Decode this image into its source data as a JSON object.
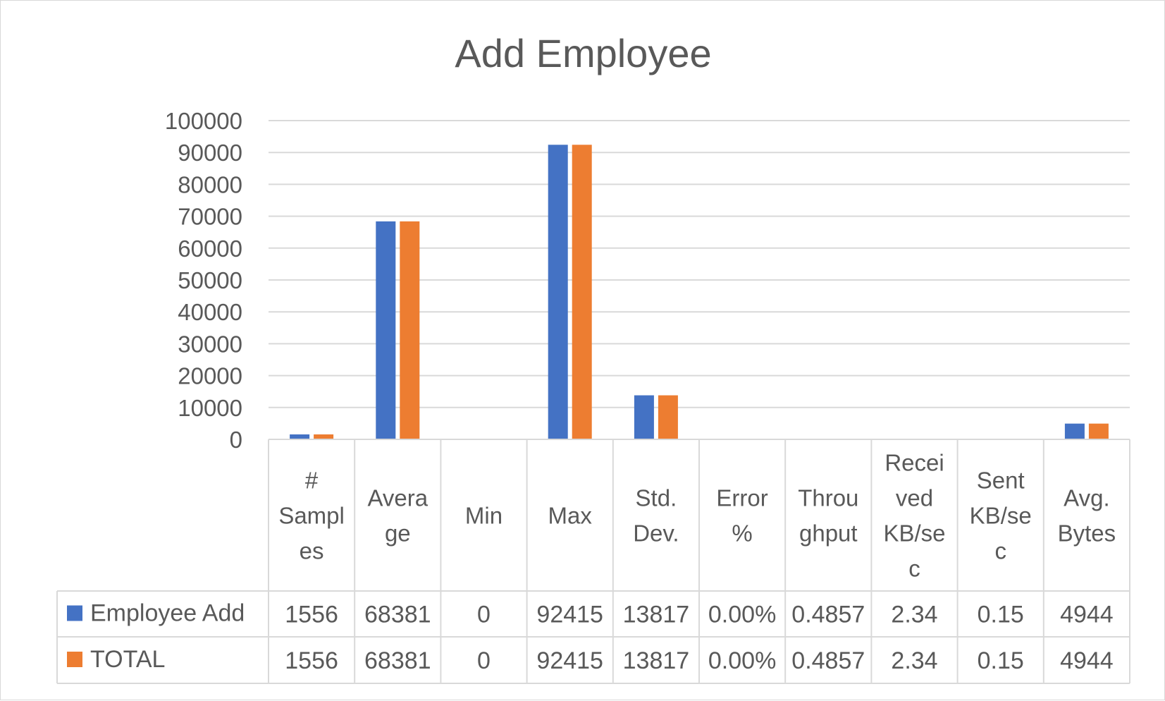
{
  "chart_data": {
    "type": "bar",
    "title": "Add Employee",
    "xlabel": "",
    "ylabel": "",
    "ylim": [
      0,
      100000
    ],
    "y_ticks": [
      "0",
      "10000",
      "20000",
      "30000",
      "40000",
      "50000",
      "60000",
      "70000",
      "80000",
      "90000",
      "100000"
    ],
    "categories": [
      "# Samples",
      "Average",
      "Min",
      "Max",
      "Std. Dev.",
      "Error %",
      "Throughput",
      "Received KB/sec",
      "Sent KB/sec",
      "Avg. Bytes"
    ],
    "category_label_lines": [
      [
        "#",
        "Sampl",
        "es"
      ],
      [
        "Avera",
        "ge"
      ],
      [
        "Min"
      ],
      [
        "Max"
      ],
      [
        "Std.",
        "Dev."
      ],
      [
        "Error",
        "%"
      ],
      [
        "Throu",
        "ghput"
      ],
      [
        "Recei",
        "ved",
        "KB/se",
        "c"
      ],
      [
        "Sent",
        "KB/se",
        "c"
      ],
      [
        "Avg.",
        "Bytes"
      ]
    ],
    "series": [
      {
        "name": "Employee Add",
        "color": "#4472c4",
        "values": [
          1556,
          68381,
          0,
          92415,
          13817,
          0,
          0.4857,
          2.34,
          0.15,
          4944
        ],
        "table_labels": [
          "1556",
          "68381",
          "0",
          "92415",
          "13817",
          "0.00%",
          "0.4857",
          "2.34",
          "0.15",
          "4944"
        ]
      },
      {
        "name": "TOTAL",
        "color": "#ed7d31",
        "values": [
          1556,
          68381,
          0,
          92415,
          13817,
          0,
          0.4857,
          2.34,
          0.15,
          4944
        ],
        "table_labels": [
          "1556",
          "68381",
          "0",
          "92415",
          "13817",
          "0.00%",
          "0.4857",
          "2.34",
          "0.15",
          "4944"
        ]
      }
    ],
    "grid": true,
    "legend": "data-table"
  }
}
